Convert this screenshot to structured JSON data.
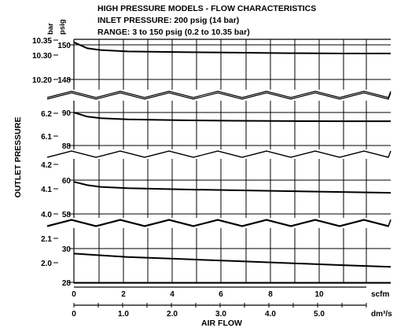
{
  "chart_data": {
    "type": "line",
    "title_lines": [
      "HIGH PRESSURE MODELS - FLOW CHARACTERISTICS",
      "INLET PRESSURE: 200 psig (14 bar)",
      "RANGE: 3 to 150 psig (0.2 to 10.35 bar)"
    ],
    "unit_labels": {
      "bar": "bar",
      "psig": "psig"
    },
    "ylabel": "OUTLET PRESSURE",
    "xlabel": "AIR FLOW",
    "x_units": {
      "scfm": "scfm",
      "metric": "dm³/s"
    },
    "xlim": [
      0,
      11.8
    ],
    "x_ticks_scfm": [
      "0",
      "2",
      "4",
      "6",
      "8",
      "10"
    ],
    "x_ticks_metric": [
      "0",
      "1.0",
      "2.0",
      "3.0",
      "4.0",
      "5.0"
    ],
    "panels": [
      {
        "psig_ticks": [
          "150",
          "148"
        ],
        "bar_ticks": [
          "10.35",
          "10.30",
          "10.20"
        ],
        "series": [
          {
            "x": [
              0,
              0.5,
              1,
              2,
              4,
              6,
              8,
              10,
              11.8
            ],
            "y": [
              150.15,
              149.8,
              149.7,
              149.62,
              149.58,
              149.55,
              149.52,
              149.5,
              149.5
            ]
          }
        ]
      },
      {
        "psig_ticks": [
          "90",
          "88"
        ],
        "bar_ticks": [
          "6.2",
          "6.1"
        ],
        "series": [
          {
            "x": [
              0,
              0.5,
              1,
              2,
              4,
              6,
              8,
              10,
              11.8
            ],
            "y": [
              90.0,
              89.75,
              89.65,
              89.58,
              89.53,
              89.5,
              89.48,
              89.47,
              89.47
            ]
          }
        ]
      },
      {
        "psig_ticks": [
          "60",
          "58"
        ],
        "bar_ticks": [
          "4.2",
          "4.1",
          "4.0"
        ],
        "series": [
          {
            "x": [
              0,
              0.5,
              1,
              2,
              4,
              6,
              8,
              10,
              11.8
            ],
            "y": [
              59.9,
              59.7,
              59.6,
              59.52,
              59.45,
              59.4,
              59.35,
              59.3,
              59.25
            ]
          }
        ]
      },
      {
        "psig_ticks": [
          "30",
          "28"
        ],
        "bar_ticks": [
          "2.1",
          "2.0"
        ],
        "series": [
          {
            "x": [
              0,
              1,
              2,
              4,
              6,
              8,
              10,
              11.8
            ],
            "y": [
              29.7,
              29.6,
              29.5,
              29.38,
              29.26,
              29.14,
              29.02,
              28.92
            ]
          }
        ]
      }
    ],
    "grid": true
  }
}
